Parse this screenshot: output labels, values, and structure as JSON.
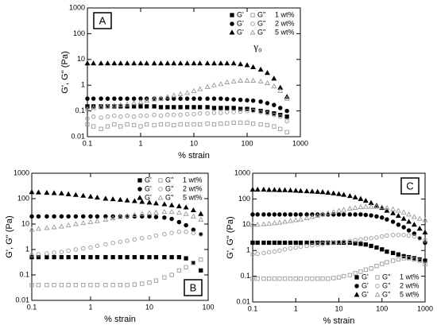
{
  "chart_data": [
    {
      "type": "scatter",
      "xlabel": "% strain",
      "ylabel": "G', G'' (Pa)",
      "panel_label": "A",
      "panel_label_corner": "upper left",
      "legend": "upper right",
      "log_x": true,
      "log_y": true,
      "annotations": [
        "γ₀"
      ],
      "xlim": [
        0.1,
        1000
      ],
      "ylim": [
        0.01,
        1000
      ],
      "xticks": [
        0.1,
        1,
        10,
        100,
        1000
      ],
      "yticks": [
        0.01,
        0.1,
        1,
        10,
        100,
        1000
      ],
      "x": [
        0.1,
        0.13,
        0.18,
        0.24,
        0.32,
        0.42,
        0.56,
        0.75,
        1,
        1.3,
        1.8,
        2.4,
        3.2,
        4.2,
        5.6,
        7.5,
        10,
        13,
        18,
        24,
        32,
        42,
        56,
        75,
        100,
        130,
        180,
        240,
        320,
        420,
        560
      ],
      "groups": [
        {
          "label": "1 wt%",
          "marker": "square",
          "series": [
            {
              "name": "G'",
              "filled": true,
              "color": "#000000",
              "values": [
                0.15,
                0.15,
                0.15,
                0.15,
                0.15,
                0.15,
                0.15,
                0.15,
                0.15,
                0.15,
                0.15,
                0.14,
                0.14,
                0.14,
                0.14,
                0.14,
                0.14,
                0.14,
                0.14,
                0.13,
                0.13,
                0.13,
                0.13,
                0.12,
                0.12,
                0.11,
                0.1,
                0.09,
                0.08,
                0.07,
                0.06
              ]
            },
            {
              "name": "G''",
              "filled": false,
              "color": "#999999",
              "values": [
                0.03,
                0.025,
                0.02,
                0.025,
                0.03,
                0.025,
                0.03,
                0.028,
                0.025,
                0.03,
                0.028,
                0.03,
                0.03,
                0.028,
                0.03,
                0.03,
                0.03,
                0.03,
                0.032,
                0.03,
                0.032,
                0.033,
                0.035,
                0.035,
                0.035,
                0.032,
                0.03,
                0.028,
                0.025,
                0.02,
                0.015
              ]
            }
          ]
        },
        {
          "label": "2 wt%",
          "marker": "circle",
          "series": [
            {
              "name": "G'",
              "filled": true,
              "color": "#000000",
              "values": [
                0.3,
                0.3,
                0.3,
                0.3,
                0.3,
                0.3,
                0.3,
                0.3,
                0.3,
                0.3,
                0.3,
                0.3,
                0.3,
                0.3,
                0.3,
                0.3,
                0.3,
                0.3,
                0.3,
                0.3,
                0.3,
                0.29,
                0.28,
                0.27,
                0.26,
                0.25,
                0.23,
                0.2,
                0.17,
                0.13,
                0.1
              ]
            },
            {
              "name": "G''",
              "filled": false,
              "color": "#999999",
              "values": [
                0.05,
                0.06,
                0.055,
                0.06,
                0.065,
                0.06,
                0.065,
                0.06,
                0.065,
                0.065,
                0.07,
                0.065,
                0.07,
                0.07,
                0.07,
                0.075,
                0.075,
                0.08,
                0.08,
                0.085,
                0.085,
                0.09,
                0.09,
                0.095,
                0.1,
                0.1,
                0.09,
                0.08,
                0.07,
                0.06,
                0.04
              ]
            }
          ]
        },
        {
          "label": "5 wt%",
          "marker": "triangle",
          "series": [
            {
              "name": "G'",
              "filled": true,
              "color": "#000000",
              "values": [
                7,
                7,
                7,
                7,
                7,
                7,
                7,
                7,
                7,
                7,
                7,
                7,
                7,
                7,
                7,
                7,
                7,
                7,
                7,
                7,
                7,
                7,
                7,
                6.5,
                6,
                5,
                4,
                3,
                1.8,
                0.8,
                0.35
              ]
            },
            {
              "name": "G''",
              "filled": false,
              "color": "#999999",
              "values": [
                0.12,
                0.13,
                0.14,
                0.15,
                0.16,
                0.17,
                0.18,
                0.2,
                0.22,
                0.25,
                0.28,
                0.3,
                0.35,
                0.4,
                0.45,
                0.5,
                0.6,
                0.7,
                0.85,
                1,
                1.1,
                1.3,
                1.4,
                1.5,
                1.5,
                1.5,
                1.4,
                1.2,
                0.9,
                0.6,
                0.3
              ]
            }
          ]
        }
      ]
    },
    {
      "type": "scatter",
      "xlabel": "% strain",
      "ylabel": "G', G'' (Pa)",
      "panel_label": "B",
      "panel_label_corner": "lower right",
      "legend": "upper right",
      "log_x": true,
      "log_y": true,
      "xlim": [
        0.1,
        100
      ],
      "ylim": [
        0.01,
        1000
      ],
      "xticks": [
        0.1,
        1,
        10,
        100
      ],
      "yticks": [
        0.01,
        0.1,
        1,
        10,
        100,
        1000
      ],
      "x": [
        0.1,
        0.13,
        0.18,
        0.24,
        0.32,
        0.42,
        0.56,
        0.75,
        1,
        1.3,
        1.8,
        2.4,
        3.2,
        4.2,
        5.6,
        7.5,
        10,
        13,
        18,
        24,
        32,
        42,
        56,
        75
      ],
      "groups": [
        {
          "label": "1 wt%",
          "marker": "square",
          "series": [
            {
              "name": "G'",
              "filled": true,
              "color": "#000000",
              "values": [
                0.5,
                0.5,
                0.5,
                0.5,
                0.5,
                0.5,
                0.5,
                0.5,
                0.5,
                0.5,
                0.5,
                0.5,
                0.5,
                0.5,
                0.5,
                0.5,
                0.5,
                0.5,
                0.5,
                0.5,
                0.5,
                0.45,
                0.3,
                0.15
              ]
            },
            {
              "name": "G''",
              "filled": false,
              "color": "#999999",
              "values": [
                0.04,
                0.04,
                0.04,
                0.04,
                0.04,
                0.04,
                0.04,
                0.04,
                0.04,
                0.04,
                0.04,
                0.04,
                0.04,
                0.04,
                0.042,
                0.045,
                0.05,
                0.06,
                0.08,
                0.1,
                0.15,
                0.2,
                0.3,
                0.4
              ]
            }
          ]
        },
        {
          "label": "2 wt%",
          "marker": "circle",
          "series": [
            {
              "name": "G'",
              "filled": true,
              "color": "#000000",
              "values": [
                20,
                20,
                20,
                20,
                20,
                20,
                20,
                20,
                20,
                20,
                20,
                20,
                20,
                20,
                20,
                20,
                20,
                19,
                18,
                16,
                12,
                9,
                6,
                4
              ]
            },
            {
              "name": "G''",
              "filled": false,
              "color": "#999999",
              "values": [
                0.6,
                0.65,
                0.7,
                0.75,
                0.8,
                0.9,
                1,
                1.1,
                1.2,
                1.4,
                1.6,
                1.8,
                2,
                2.2,
                2.5,
                2.8,
                3,
                3.5,
                4,
                4.5,
                5,
                5,
                4.5,
                4
              ]
            }
          ]
        },
        {
          "label": "5 wt%",
          "marker": "triangle",
          "series": [
            {
              "name": "G'",
              "filled": true,
              "color": "#000000",
              "values": [
                180,
                175,
                170,
                165,
                160,
                150,
                140,
                130,
                120,
                110,
                100,
                95,
                90,
                85,
                80,
                75,
                70,
                65,
                60,
                55,
                50,
                45,
                35,
                25
              ]
            },
            {
              "name": "G''",
              "filled": false,
              "color": "#999999",
              "values": [
                6,
                6.5,
                7,
                7.5,
                8,
                9,
                10,
                11,
                12,
                13,
                15,
                17,
                19,
                21,
                23,
                25,
                27,
                28,
                30,
                30,
                28,
                25,
                20,
                15
              ]
            }
          ]
        }
      ]
    },
    {
      "type": "scatter",
      "xlabel": "% strain",
      "ylabel": "G', G'' (Pa)",
      "panel_label": "C",
      "panel_label_corner": "upper right",
      "legend": "lower right",
      "log_x": true,
      "log_y": true,
      "xlim": [
        0.1,
        1000
      ],
      "ylim": [
        0.01,
        1000
      ],
      "xticks": [
        0.1,
        1,
        10,
        100,
        1000
      ],
      "yticks": [
        0.01,
        0.1,
        1,
        10,
        100,
        1000
      ],
      "x": [
        0.1,
        0.13,
        0.18,
        0.24,
        0.32,
        0.42,
        0.56,
        0.75,
        1,
        1.3,
        1.8,
        2.4,
        3.2,
        4.2,
        5.6,
        7.5,
        10,
        13,
        18,
        24,
        32,
        42,
        56,
        75,
        100,
        130,
        180,
        240,
        320,
        420,
        560,
        750,
        1000
      ],
      "groups": [
        {
          "label": "1 wt%",
          "marker": "square",
          "series": [
            {
              "name": "G'",
              "filled": true,
              "color": "#000000",
              "values": [
                2,
                2,
                2,
                2,
                2,
                2,
                2,
                2,
                2,
                2,
                2,
                2,
                2,
                2,
                2,
                2,
                2,
                2,
                2,
                1.9,
                1.8,
                1.7,
                1.5,
                1.3,
                1.1,
                0.9,
                0.8,
                0.7,
                0.6,
                0.55,
                0.5,
                0.45,
                0.4
              ]
            },
            {
              "name": "G''",
              "filled": false,
              "color": "#999999",
              "values": [
                0.08,
                0.08,
                0.08,
                0.08,
                0.08,
                0.08,
                0.08,
                0.08,
                0.08,
                0.08,
                0.08,
                0.08,
                0.08,
                0.08,
                0.08,
                0.085,
                0.09,
                0.1,
                0.11,
                0.13,
                0.15,
                0.18,
                0.2,
                0.25,
                0.3,
                0.35,
                0.4,
                0.45,
                0.5,
                0.5,
                0.45,
                0.4,
                0.3
              ]
            }
          ]
        },
        {
          "label": "2 wt%",
          "marker": "circle",
          "series": [
            {
              "name": "G'",
              "filled": true,
              "color": "#000000",
              "values": [
                25,
                25,
                25,
                25,
                25,
                25,
                25,
                25,
                25,
                25,
                25,
                25,
                25,
                25,
                25,
                25,
                25,
                25,
                25,
                25,
                25,
                24,
                23,
                21,
                19,
                16,
                13,
                10,
                8,
                6,
                4.5,
                3,
                2
              ]
            },
            {
              "name": "G''",
              "filled": false,
              "color": "#999999",
              "values": [
                0.7,
                0.75,
                0.8,
                0.85,
                0.9,
                1,
                1.1,
                1.2,
                1.3,
                1.4,
                1.5,
                1.6,
                1.7,
                1.8,
                1.9,
                2,
                2.1,
                2.2,
                2.3,
                2.5,
                2.7,
                2.9,
                3,
                3.2,
                3.5,
                3.8,
                4,
                4,
                4,
                3.8,
                3.5,
                3,
                2.5
              ]
            }
          ]
        },
        {
          "label": "5 wt%",
          "marker": "triangle",
          "series": [
            {
              "name": "G'",
              "filled": true,
              "color": "#000000",
              "values": [
                230,
                230,
                230,
                225,
                225,
                220,
                220,
                215,
                210,
                205,
                200,
                195,
                190,
                185,
                175,
                165,
                155,
                145,
                130,
                115,
                100,
                85,
                70,
                55,
                45,
                35,
                28,
                22,
                17,
                13,
                10,
                7,
                5
              ]
            },
            {
              "name": "G''",
              "filled": false,
              "color": "#999999",
              "values": [
                10,
                10,
                10.5,
                11,
                11.5,
                12,
                13,
                14,
                15,
                16,
                18,
                20,
                22,
                25,
                28,
                31,
                35,
                38,
                42,
                45,
                48,
                50,
                50,
                50,
                48,
                45,
                40,
                35,
                30,
                25,
                20,
                17,
                15
              ]
            }
          ]
        }
      ]
    }
  ]
}
